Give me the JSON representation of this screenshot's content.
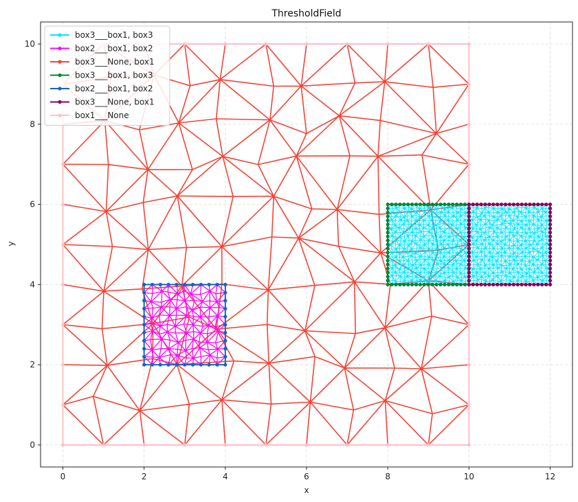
{
  "chart_data": {
    "type": "line",
    "title": "ThresholdField",
    "xlabel": "x",
    "ylabel": "y",
    "xlim": [
      -0.55,
      12.55
    ],
    "ylim": [
      -0.55,
      10.55
    ],
    "xticks": [
      0,
      2,
      4,
      6,
      8,
      10,
      12
    ],
    "yticks": [
      0,
      2,
      4,
      6,
      8,
      10
    ],
    "grid": true,
    "legend_position": "top-left",
    "series": [
      {
        "name": "box3___box1, box3",
        "color": "#00e5ff",
        "mesh": "dense",
        "bounds": [
          8,
          12,
          4,
          6
        ],
        "step": 0.1
      },
      {
        "name": "box2___box1, box2",
        "color": "#ff00ff",
        "mesh": "medium",
        "bounds": [
          2,
          4,
          2,
          4
        ],
        "step": 0.2
      },
      {
        "name": "box3___None, box1",
        "color": "#f44336",
        "mesh": "coarse",
        "bounds": [
          0,
          10,
          0,
          10
        ],
        "step": 1.0
      },
      {
        "name": "box3___box1, box3",
        "color": "#00843d",
        "outline": [
          8,
          10,
          4,
          6
        ],
        "step": 0.1
      },
      {
        "name": "box2___box1, box2",
        "color": "#1565c0",
        "outline": [
          2,
          4,
          2,
          4
        ],
        "step": 0.2
      },
      {
        "name": "box3___None, box1",
        "color": "#8b0057",
        "outline": [
          10,
          12,
          4,
          6
        ],
        "step": 0.1
      },
      {
        "name": "box1___None",
        "color": "#ffc0cb",
        "outline": [
          0,
          10,
          0,
          10
        ],
        "step": 1.0
      }
    ]
  }
}
